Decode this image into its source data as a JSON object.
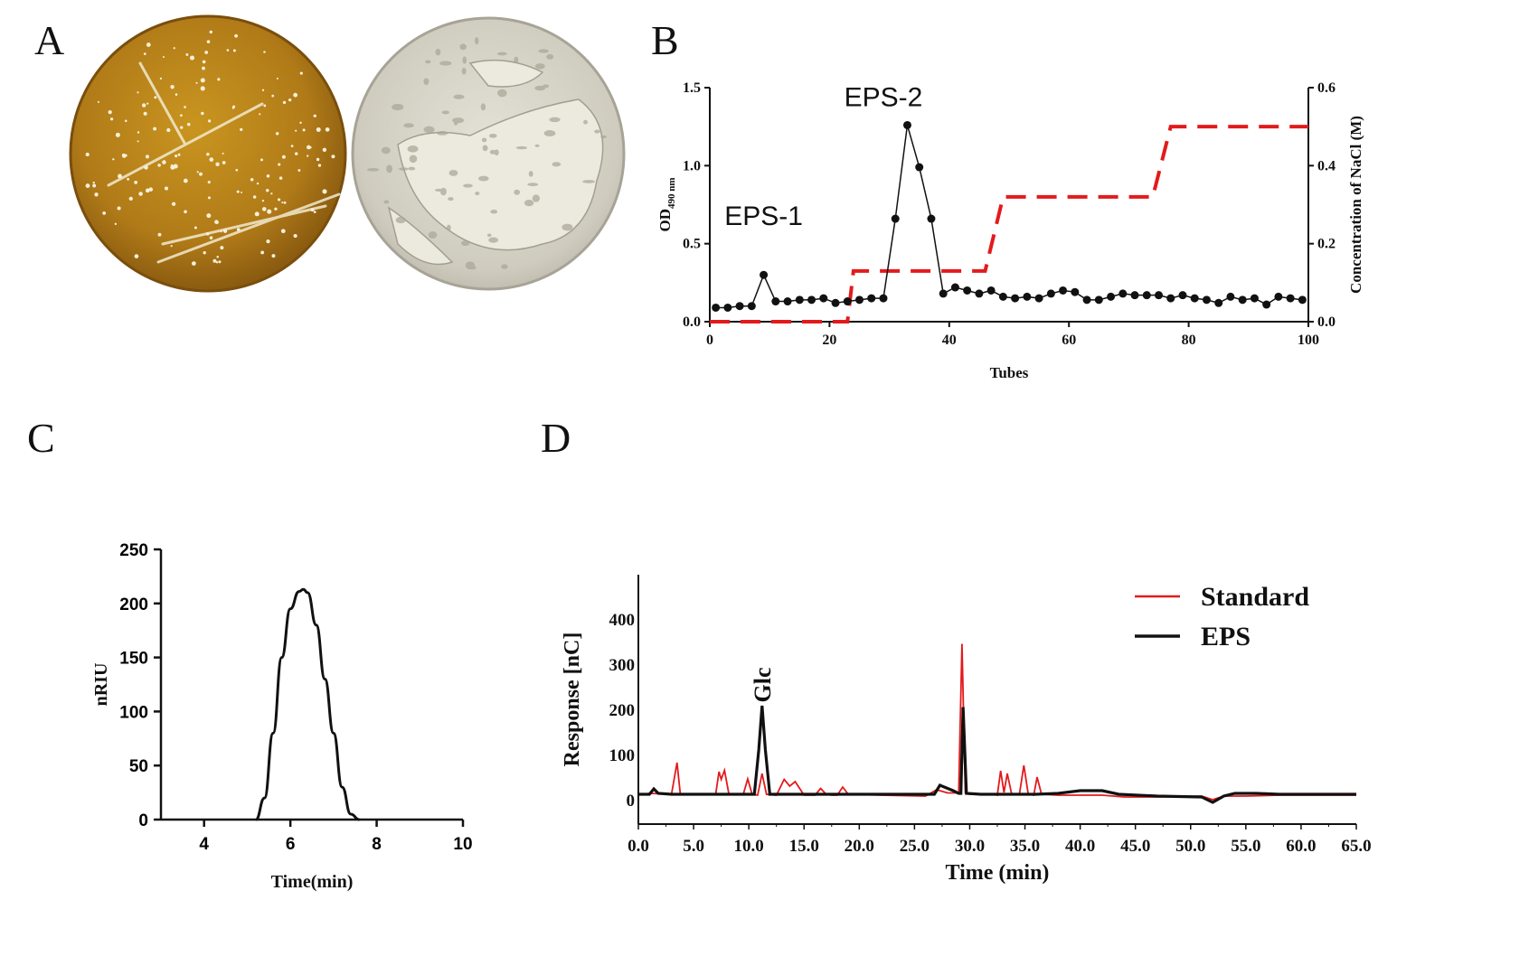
{
  "panels": {
    "a": "A",
    "b": "B",
    "c": "C",
    "d": "D"
  },
  "colors": {
    "agar_amber": "#b9861f",
    "agar_pale": "#d9d7cc",
    "gradient_red": "#e31a1c",
    "line_black": "#111111",
    "standard_red": "#e31a1c"
  },
  "chart_data": [
    {
      "panel": "B",
      "type": "line",
      "xlabel": "Tubes",
      "ylabel_main": "OD",
      "ylabel_sub": "490 nm",
      "y2label": "Concentration of NaCl (M)",
      "xlim": [
        0,
        100
      ],
      "ylim": [
        0,
        1.5
      ],
      "y2lim": [
        0,
        0.6
      ],
      "xticks": [
        "0",
        "20",
        "40",
        "60",
        "80",
        "100"
      ],
      "yticks": [
        "0.0",
        "0.5",
        "1.0",
        "1.5"
      ],
      "y2ticks": [
        "0.0",
        "0.2",
        "0.4",
        "0.6"
      ],
      "annotations": [
        {
          "text": "EPS-1",
          "x": 9,
          "y": 0.62
        },
        {
          "text": "EPS-2",
          "x": 29,
          "y": 1.38
        }
      ],
      "series": [
        {
          "style": "black-dots",
          "x": [
            1,
            3,
            5,
            7,
            9,
            11,
            13,
            15,
            17,
            19,
            21,
            23,
            25,
            27,
            29,
            31,
            33,
            35,
            37,
            39,
            41,
            43,
            45,
            47,
            49,
            51,
            53,
            55,
            57,
            59,
            61,
            63,
            65,
            67,
            69,
            71,
            73,
            75,
            77,
            79,
            81,
            83,
            85,
            87,
            89,
            91,
            93,
            95,
            97,
            99
          ],
          "y": [
            0.09,
            0.09,
            0.1,
            0.1,
            0.3,
            0.13,
            0.13,
            0.14,
            0.14,
            0.15,
            0.12,
            0.13,
            0.14,
            0.15,
            0.15,
            0.66,
            1.26,
            0.99,
            0.66,
            0.18,
            0.22,
            0.2,
            0.18,
            0.2,
            0.16,
            0.15,
            0.16,
            0.15,
            0.18,
            0.2,
            0.19,
            0.14,
            0.14,
            0.16,
            0.18,
            0.17,
            0.17,
            0.17,
            0.15,
            0.17,
            0.15,
            0.14,
            0.12,
            0.16,
            0.14,
            0.15,
            0.11,
            0.16,
            0.15,
            0.14
          ]
        },
        {
          "style": "red-dashed-step",
          "axis": "y2",
          "x": [
            0,
            21,
            23,
            24,
            46,
            49,
            74,
            77,
            100
          ],
          "y": [
            0.0,
            0.0,
            0.0,
            0.13,
            0.13,
            0.32,
            0.32,
            0.5,
            0.5
          ]
        }
      ]
    },
    {
      "panel": "C",
      "type": "line",
      "xlabel": "Time(min)",
      "ylabel": "nRIU",
      "xlim": [
        3,
        10
      ],
      "ylim": [
        0,
        250
      ],
      "xticks": [
        "4",
        "6",
        "8",
        "10"
      ],
      "yticks": [
        "0",
        "50",
        "100",
        "150",
        "200",
        "250"
      ],
      "series": [
        {
          "x": [
            5.2,
            5.4,
            5.6,
            5.8,
            6.0,
            6.2,
            6.3,
            6.4,
            6.6,
            6.8,
            7.0,
            7.2,
            7.4,
            7.6
          ],
          "y": [
            0,
            20,
            80,
            150,
            195,
            211,
            213,
            210,
            180,
            130,
            80,
            30,
            5,
            0
          ]
        }
      ]
    },
    {
      "panel": "D",
      "type": "line",
      "xlabel": "Time (min)",
      "ylabel": "Response [nC]",
      "xlim": [
        0,
        65
      ],
      "ylim": [
        0,
        450
      ],
      "xticks": [
        "0.0",
        "5.0",
        "10.0",
        "15.0",
        "20.0",
        "25.0",
        "30.0",
        "35.0",
        "40.0",
        "45.0",
        "50.0",
        "55.0",
        "60.0",
        "65.0"
      ],
      "yticks": [
        "0",
        "100",
        "200",
        "300",
        "400"
      ],
      "legend": "top-right",
      "annotations": [
        {
          "text": "Glc",
          "x": 11.2,
          "y": 215
        }
      ],
      "series": [
        {
          "name": "Standard",
          "color": "#e31a1c",
          "x": [
            0,
            1,
            3,
            3.5,
            3.8,
            4.5,
            7,
            7.3,
            7.5,
            7.8,
            8.2,
            9.5,
            9.9,
            10.3,
            10.8,
            11.2,
            11.6,
            12.5,
            13.2,
            13.7,
            14.2,
            15,
            16,
            16.5,
            17,
            17.5,
            18,
            18.5,
            19,
            22,
            26,
            27,
            28,
            29,
            29.3,
            29.6,
            30,
            32,
            32.5,
            32.8,
            33.1,
            33.4,
            33.8,
            34.5,
            34.9,
            35.3,
            35.8,
            36.1,
            36.5,
            38,
            40,
            41,
            42,
            43,
            44,
            47,
            51,
            52,
            53,
            55,
            58,
            65
          ],
          "y": [
            10,
            14,
            12,
            82,
            12,
            12,
            12,
            62,
            45,
            65,
            12,
            12,
            46,
            12,
            10,
            58,
            12,
            10,
            45,
            30,
            40,
            10,
            10,
            25,
            12,
            10,
            10,
            28,
            12,
            10,
            8,
            22,
            15,
            15,
            345,
            15,
            12,
            12,
            10,
            64,
            16,
            58,
            12,
            12,
            76,
            12,
            10,
            50,
            12,
            10,
            10,
            10,
            10,
            8,
            6,
            6,
            8,
            0,
            8,
            8,
            10,
            10
          ]
        },
        {
          "name": "EPS",
          "color": "#111111",
          "x": [
            0,
            1,
            1.4,
            1.8,
            3,
            10.5,
            10.9,
            11.2,
            11.5,
            11.9,
            13,
            20,
            26,
            26.8,
            27.3,
            28.5,
            29,
            29.2,
            29.4,
            29.7,
            31,
            36,
            38,
            40,
            42,
            43.5,
            47,
            51,
            52,
            53,
            54,
            56,
            58,
            65
          ],
          "y": [
            12,
            12,
            24,
            14,
            12,
            12,
            110,
            208,
            110,
            12,
            12,
            12,
            12,
            12,
            32,
            20,
            14,
            14,
            205,
            14,
            12,
            12,
            14,
            20,
            20,
            12,
            8,
            6,
            -6,
            8,
            14,
            14,
            12,
            12
          ]
        }
      ]
    }
  ]
}
